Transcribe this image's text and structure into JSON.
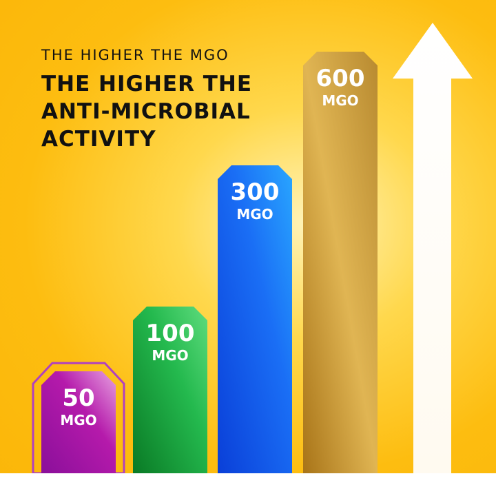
{
  "heading": {
    "subtitle": "THE HIGHER THE MGO",
    "title_lines": [
      "THE HIGHER THE",
      "ANTI-MICROBIAL",
      "ACTIVITY"
    ]
  },
  "chart_data": {
    "type": "bar",
    "categories": [
      "50 MGO",
      "100 MGO",
      "300 MGO",
      "600 MGO"
    ],
    "values": [
      50,
      100,
      300,
      600
    ],
    "unit": "MGO",
    "colors": [
      "#b01aa8",
      "#22b24a",
      "#1060f0",
      "#c9962a"
    ],
    "arrow": "up-arrow",
    "title": "THE HIGHER THE MGO THE HIGHER THE ANTI-MICROBIAL ACTIVITY"
  }
}
